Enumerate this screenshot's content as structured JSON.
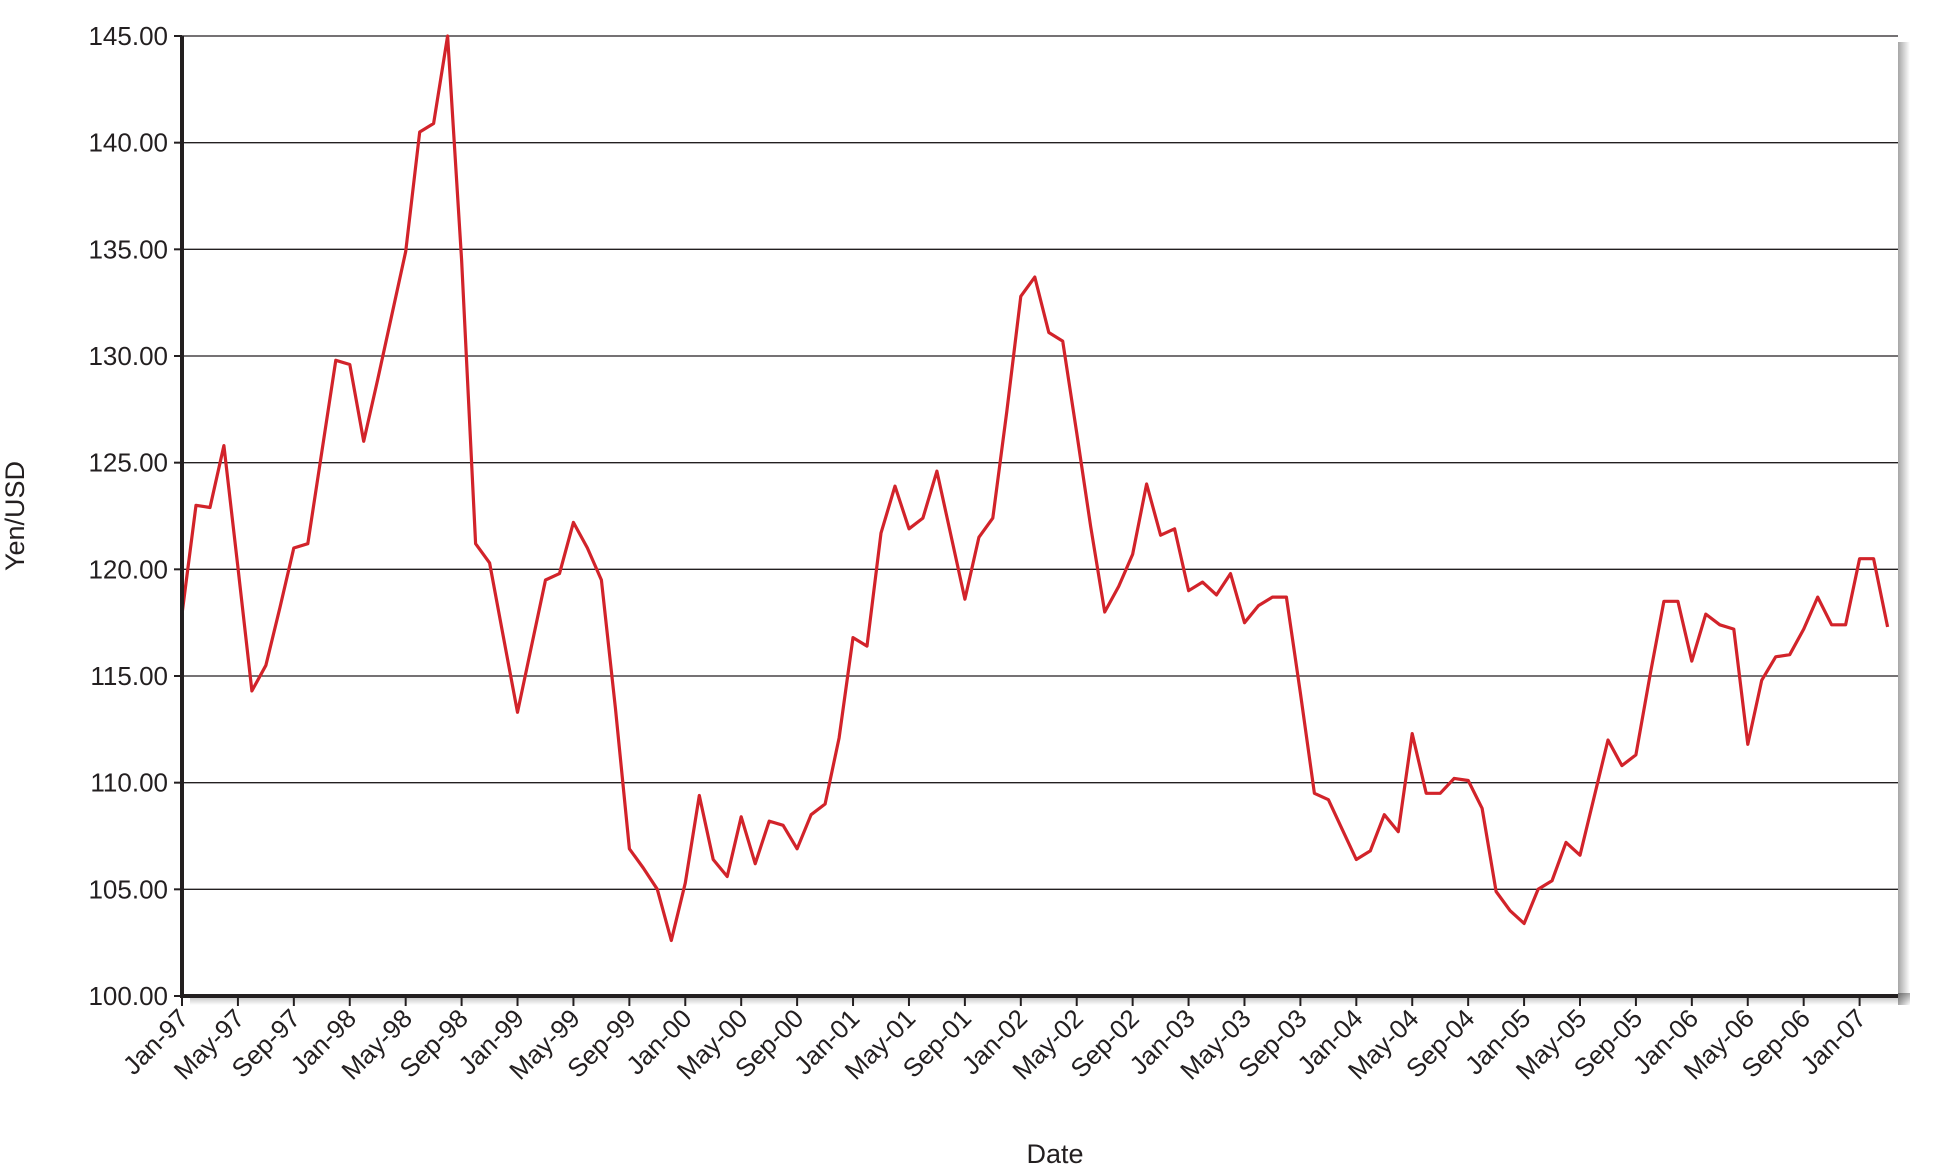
{
  "chart_data": {
    "type": "line",
    "title": "",
    "xlabel": "Date",
    "ylabel": "Yen/USD",
    "ylim": [
      100,
      145
    ],
    "yticks": [
      "100.00",
      "105.00",
      "110.00",
      "115.00",
      "120.00",
      "125.00",
      "130.00",
      "135.00",
      "140.00",
      "145.00"
    ],
    "ytick_values": [
      100,
      105,
      110,
      115,
      120,
      125,
      130,
      135,
      140,
      145
    ],
    "xticks": [
      "Jan-97",
      "May-97",
      "Sep-97",
      "Jan-98",
      "May-98",
      "Sep-98",
      "Jan-99",
      "May-99",
      "Sep-99",
      "Jan-00",
      "May-00",
      "Sep-00",
      "Jan-01",
      "May-01",
      "Sep-01",
      "Jan-02",
      "May-02",
      "Sep-02",
      "Jan-03",
      "May-03",
      "Sep-03",
      "Jan-04",
      "May-04",
      "Sep-04",
      "Jan-05",
      "May-05",
      "Sep-05",
      "Jan-06",
      "May-06",
      "Sep-06",
      "Jan-07"
    ],
    "xtick_month_index": [
      0,
      4,
      8,
      12,
      16,
      20,
      24,
      28,
      32,
      36,
      40,
      44,
      48,
      52,
      56,
      60,
      64,
      68,
      72,
      76,
      80,
      84,
      88,
      92,
      96,
      100,
      104,
      108,
      112,
      116,
      120
    ],
    "grid": true,
    "series": [
      {
        "name": "Yen/USD",
        "color": "#d2232a",
        "start": "Jan-97",
        "values": [
          117.9,
          123.0,
          122.9,
          125.8,
          120.1,
          114.3,
          115.5,
          118.2,
          121.0,
          121.2,
          125.5,
          129.8,
          129.6,
          126.0,
          128.9,
          131.9,
          134.9,
          140.5,
          140.9,
          145.0,
          134.5,
          121.2,
          120.3,
          116.8,
          113.3,
          116.4,
          119.5,
          119.8,
          122.2,
          121.0,
          119.5,
          113.5,
          106.9,
          106.0,
          105.0,
          102.6,
          105.3,
          109.4,
          106.4,
          105.6,
          108.4,
          106.2,
          108.2,
          108.0,
          106.9,
          108.5,
          109.0,
          112.1,
          116.8,
          116.4,
          121.7,
          123.9,
          121.9,
          122.4,
          124.6,
          121.6,
          118.6,
          121.5,
          122.4,
          127.4,
          132.8,
          133.7,
          131.1,
          130.7,
          126.4,
          122.0,
          118.0,
          119.2,
          120.7,
          124.0,
          121.6,
          121.9,
          119.0,
          119.4,
          118.8,
          119.8,
          117.5,
          118.3,
          118.7,
          118.7,
          114.2,
          109.5,
          109.2,
          107.8,
          106.4,
          106.8,
          108.5,
          107.7,
          112.3,
          109.5,
          109.5,
          110.2,
          110.1,
          108.8,
          104.9,
          104.0,
          103.4,
          105.0,
          105.4,
          107.2,
          106.6,
          109.3,
          112.0,
          110.8,
          111.3,
          115.0,
          118.5,
          118.5,
          115.7,
          117.9,
          117.4,
          117.2,
          111.8,
          114.8,
          115.9,
          116.0,
          117.2,
          118.7,
          117.4,
          117.4,
          120.5,
          120.5,
          117.3
        ]
      }
    ]
  }
}
